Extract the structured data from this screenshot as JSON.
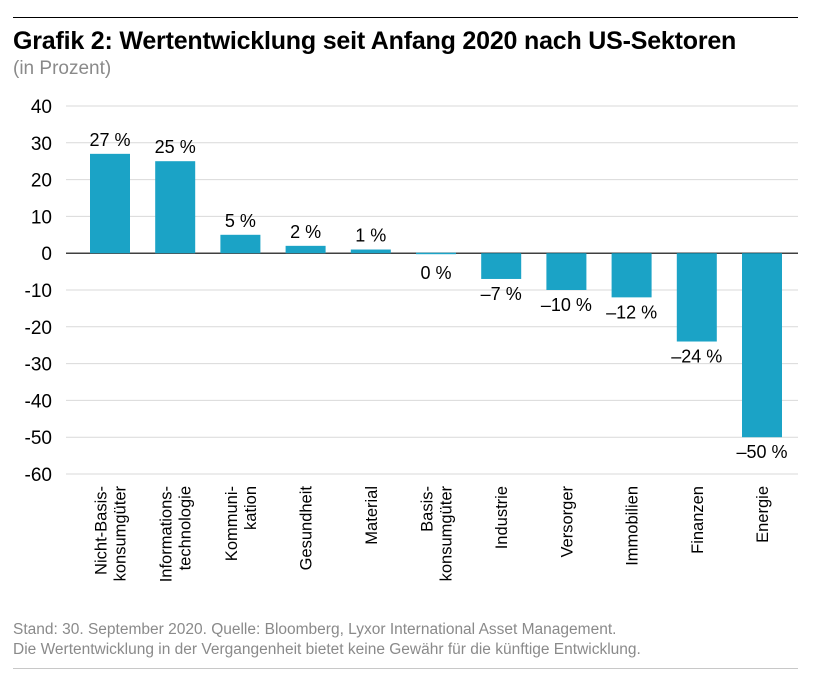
{
  "chart_data": {
    "type": "bar",
    "title_prefix": "Grafik 2:",
    "title": "Wertentwicklung seit Anfang 2020 nach US-Sektoren",
    "subtitle": "(in Prozent)",
    "ylim": [
      -60,
      40
    ],
    "yticks": [
      40,
      30,
      20,
      10,
      0,
      -10,
      -20,
      -30,
      -40,
      -50,
      -60
    ],
    "ytick_labels": [
      "40",
      "30",
      "20",
      "10",
      "0",
      "-10",
      "-20",
      "-30",
      "-40",
      "-50",
      "-60"
    ],
    "grid": true,
    "bar_color": "#1ba3c6",
    "categories": [
      [
        "Nicht-Basis-",
        "konsumgüter"
      ],
      [
        "Informations-",
        "technologie"
      ],
      [
        "Kommuni-",
        "kation"
      ],
      [
        "Gesundheit"
      ],
      [
        "Material"
      ],
      [
        "Basis-",
        "konsumgüter"
      ],
      [
        "Industrie"
      ],
      [
        "Versorger"
      ],
      [
        "Immobilien"
      ],
      [
        "Finanzen"
      ],
      [
        "Energie"
      ]
    ],
    "values": [
      27,
      25,
      5,
      2,
      1,
      0,
      -7,
      -10,
      -12,
      -24,
      -50
    ],
    "data_labels": [
      "27 %",
      "25 %",
      "5 %",
      "2 %",
      "1 %",
      "0 %",
      "–7 %",
      "–10 %",
      "–12 %",
      "–24 %",
      "–50 %"
    ]
  },
  "footer": {
    "line1": "Stand: 30. September 2020. Quelle: Bloomberg, Lyxor International Asset Management.",
    "line2": "Die Wertentwicklung in der Vergangenheit bietet keine Gewähr für die künftige Entwicklung."
  }
}
